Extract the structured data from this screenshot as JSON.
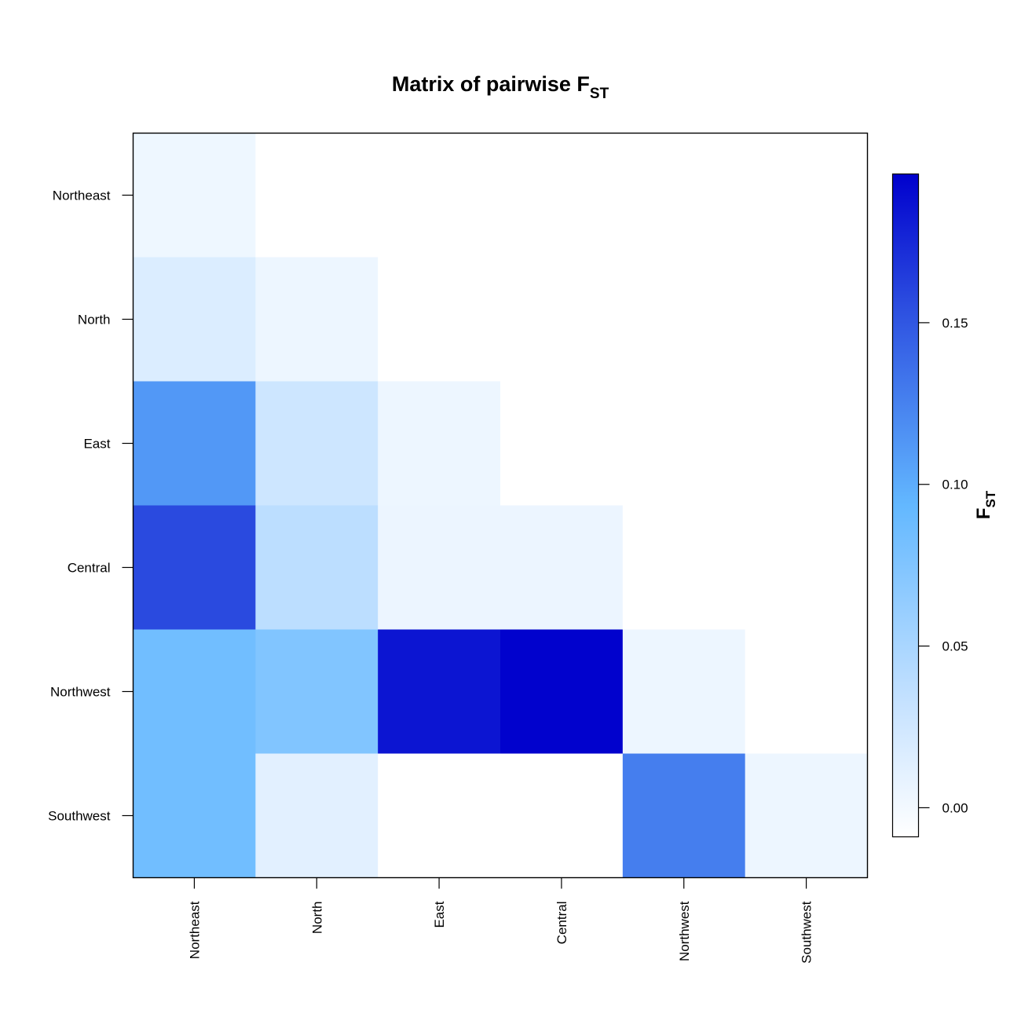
{
  "chart_data": {
    "type": "heatmap",
    "title": {
      "main": "Matrix of pairwise F",
      "subscript": "ST"
    },
    "rows": [
      "Northeast",
      "North",
      "East",
      "Central",
      "Northwest",
      "Southwest"
    ],
    "columns": [
      "Northeast",
      "North",
      "East",
      "Central",
      "Northwest",
      "Southwest"
    ],
    "values": [
      [
        0.003,
        null,
        null,
        null,
        null,
        null
      ],
      [
        0.017,
        0.004,
        null,
        null,
        null,
        null
      ],
      [
        0.112,
        0.027,
        0.004,
        null,
        null,
        null
      ],
      [
        0.157,
        0.038,
        0.005,
        0.005,
        null,
        null
      ],
      [
        0.085,
        0.075,
        0.185,
        0.195,
        0.004,
        null
      ],
      [
        0.085,
        0.012,
        null,
        null,
        0.127,
        0.004
      ]
    ],
    "colorbar": {
      "title_main": "F",
      "title_subscript": "ST",
      "range": [
        -0.009,
        0.196
      ],
      "ticks": [
        0.0,
        0.05,
        0.1,
        0.15
      ],
      "tick_labels": [
        "0.00",
        "0.05",
        "0.10",
        "0.15"
      ],
      "colors": [
        "#ffffff",
        "#c6e2ff",
        "#63b8ff",
        "#2c4ee0",
        "#0000cd"
      ],
      "color_stops": [
        0.0,
        0.2,
        0.5,
        0.8,
        1.0
      ]
    },
    "empty_cell_color": "#ffffff"
  }
}
